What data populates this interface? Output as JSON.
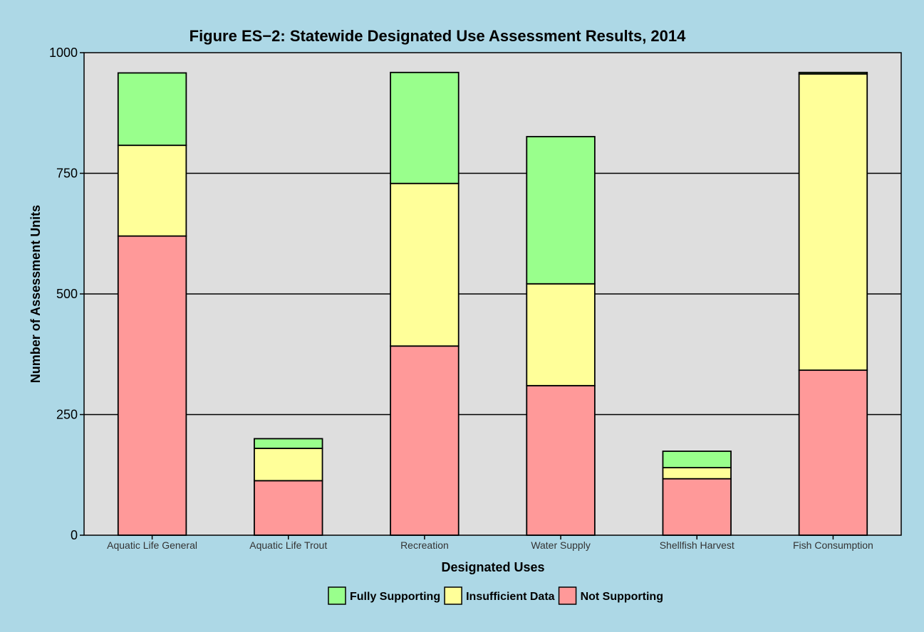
{
  "colors": {
    "background": "#add8e6",
    "panel": "#dedede",
    "grid": "#000000",
    "Fully Supporting": "#99ff8c",
    "Insufficient Data": "#ffff99",
    "Not Supporting": "#ff9999"
  },
  "chart_data": {
    "type": "bar",
    "stacked": true,
    "title": "Figure ES−2: Statewide Designated Use Assessment Results, 2014",
    "xlabel": "Designated Uses",
    "ylabel": "Number of Assessment Units",
    "ylim": [
      0,
      1000
    ],
    "yticks": [
      0,
      250,
      500,
      750,
      1000
    ],
    "grid": true,
    "legend_position": "bottom",
    "categories": [
      "Aquatic Life General",
      "Aquatic Life Trout",
      "Recreation",
      "Water Supply",
      "Shellfish Harvest",
      "Fish Consumption"
    ],
    "series": [
      {
        "name": "Not Supporting",
        "values": [
          620,
          113,
          392,
          310,
          117,
          342
        ]
      },
      {
        "name": "Insufficient Data",
        "values": [
          188,
          67,
          337,
          211,
          23,
          614
        ]
      },
      {
        "name": "Fully Supporting",
        "values": [
          150,
          20,
          230,
          305,
          34,
          3
        ]
      }
    ],
    "legend": [
      "Fully Supporting",
      "Insufficient Data",
      "Not Supporting"
    ]
  }
}
